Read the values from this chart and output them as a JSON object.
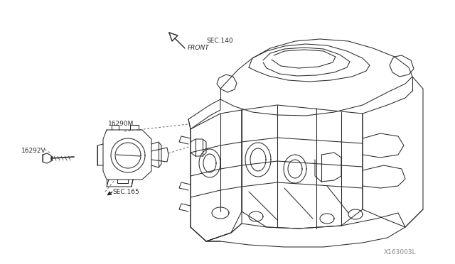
{
  "background_color": "#ffffff",
  "fig_width": 6.4,
  "fig_height": 3.72,
  "dpi": 100,
  "diagram_id": "X163003L",
  "labels": {
    "front_label": "FRONT",
    "sec140": "SEC.140",
    "part1": "16290M",
    "part2": "16292V",
    "sec165": "SEC.165"
  },
  "label_fontsize": 6.5,
  "diagram_id_fontsize": 6.5,
  "line_color": "#2a2a2a",
  "line_width": 0.75,
  "dashed_line_color": "#555555"
}
